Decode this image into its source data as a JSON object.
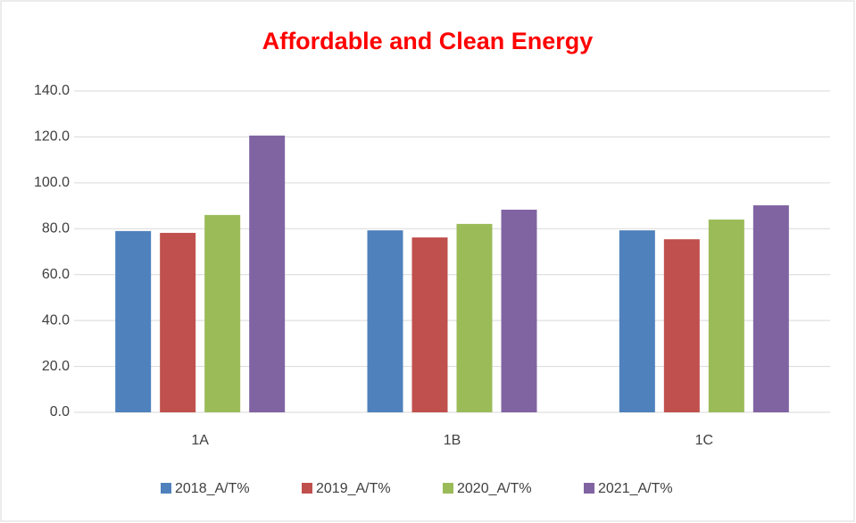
{
  "chart_data": {
    "type": "bar",
    "title": "Affordable and Clean Energy",
    "categories": [
      "1A",
      "1B",
      "1C"
    ],
    "series": [
      {
        "name": "2018_A/T%",
        "color": "#4f81bd",
        "values": [
          79.0,
          79.3,
          79.3
        ]
      },
      {
        "name": "2019_A/T%",
        "color": "#c0504d",
        "values": [
          78.2,
          76.2,
          75.4
        ]
      },
      {
        "name": "2020_A/T%",
        "color": "#9bbb59",
        "values": [
          86.0,
          82.1,
          84.0
        ]
      },
      {
        "name": "2021_A/T%",
        "color": "#8064a2",
        "values": [
          120.6,
          88.3,
          90.2
        ]
      }
    ],
    "ylim": [
      0,
      140
    ],
    "yticks": [
      {
        "value": 0,
        "label": "0.0"
      },
      {
        "value": 20,
        "label": "20.0"
      },
      {
        "value": 40,
        "label": "40.0"
      },
      {
        "value": 60,
        "label": "60.0"
      },
      {
        "value": 80,
        "label": "80.0"
      },
      {
        "value": 100,
        "label": "100.0"
      },
      {
        "value": 120,
        "label": "120.0"
      },
      {
        "value": 140,
        "label": "140.0"
      }
    ],
    "grid": true,
    "legend": "bottom"
  }
}
